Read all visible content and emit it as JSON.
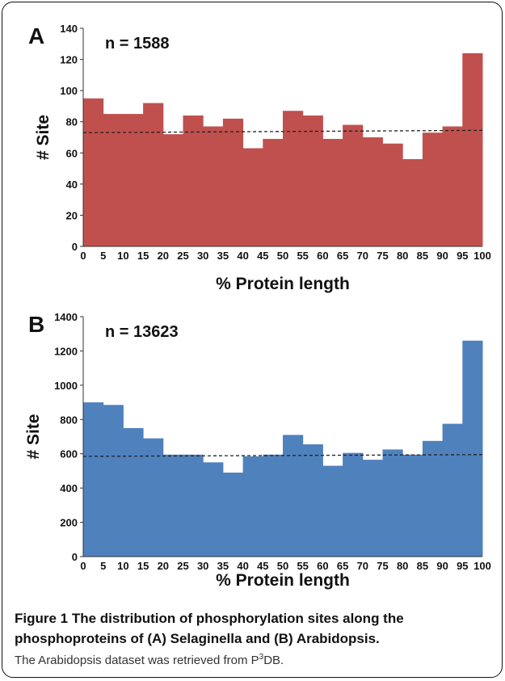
{
  "chart_data": [
    {
      "panel": "A",
      "type": "bar",
      "annotation": "n = 1588",
      "ylabel": "# Site",
      "xlabel": "% Protein length",
      "color": "#c0504d",
      "ylim": [
        0,
        140
      ],
      "yticks": [
        "0",
        "20",
        "40",
        "60",
        "80",
        "100",
        "120",
        "140"
      ],
      "xticks": [
        "0",
        "5",
        "10",
        "15",
        "20",
        "25",
        "30",
        "35",
        "40",
        "45",
        "50",
        "55",
        "60",
        "65",
        "70",
        "75",
        "80",
        "85",
        "90",
        "95",
        "100"
      ],
      "values": [
        95,
        85,
        85,
        92,
        72,
        84,
        77,
        82,
        63,
        69,
        87,
        84,
        69,
        78,
        70,
        66,
        56,
        73,
        77,
        124
      ],
      "mean_line": [
        73,
        74.5
      ]
    },
    {
      "panel": "B",
      "type": "bar",
      "annotation": "n = 13623",
      "ylabel": "# Site",
      "xlabel": "% Protein length",
      "color": "#4f81bd",
      "ylim": [
        0,
        1400
      ],
      "yticks": [
        "0",
        "200",
        "400",
        "600",
        "800",
        "1000",
        "1200",
        "1400"
      ],
      "xticks": [
        "0",
        "5",
        "10",
        "15",
        "20",
        "25",
        "30",
        "35",
        "40",
        "45",
        "50",
        "55",
        "60",
        "65",
        "70",
        "75",
        "80",
        "85",
        "90",
        "95",
        "100"
      ],
      "values": [
        900,
        885,
        750,
        690,
        595,
        595,
        550,
        490,
        585,
        595,
        710,
        655,
        530,
        605,
        565,
        625,
        595,
        675,
        775,
        1260
      ],
      "mean_line": [
        585,
        595
      ]
    }
  ],
  "caption": {
    "title": "Figure 1 The distribution of phosphorylation sites along the phosphoproteins of (A) Selaginella and (B) Arabidopsis.",
    "note_before": "The Arabidopsis dataset was retrieved from P",
    "note_sup": "3",
    "note_after": "DB."
  }
}
